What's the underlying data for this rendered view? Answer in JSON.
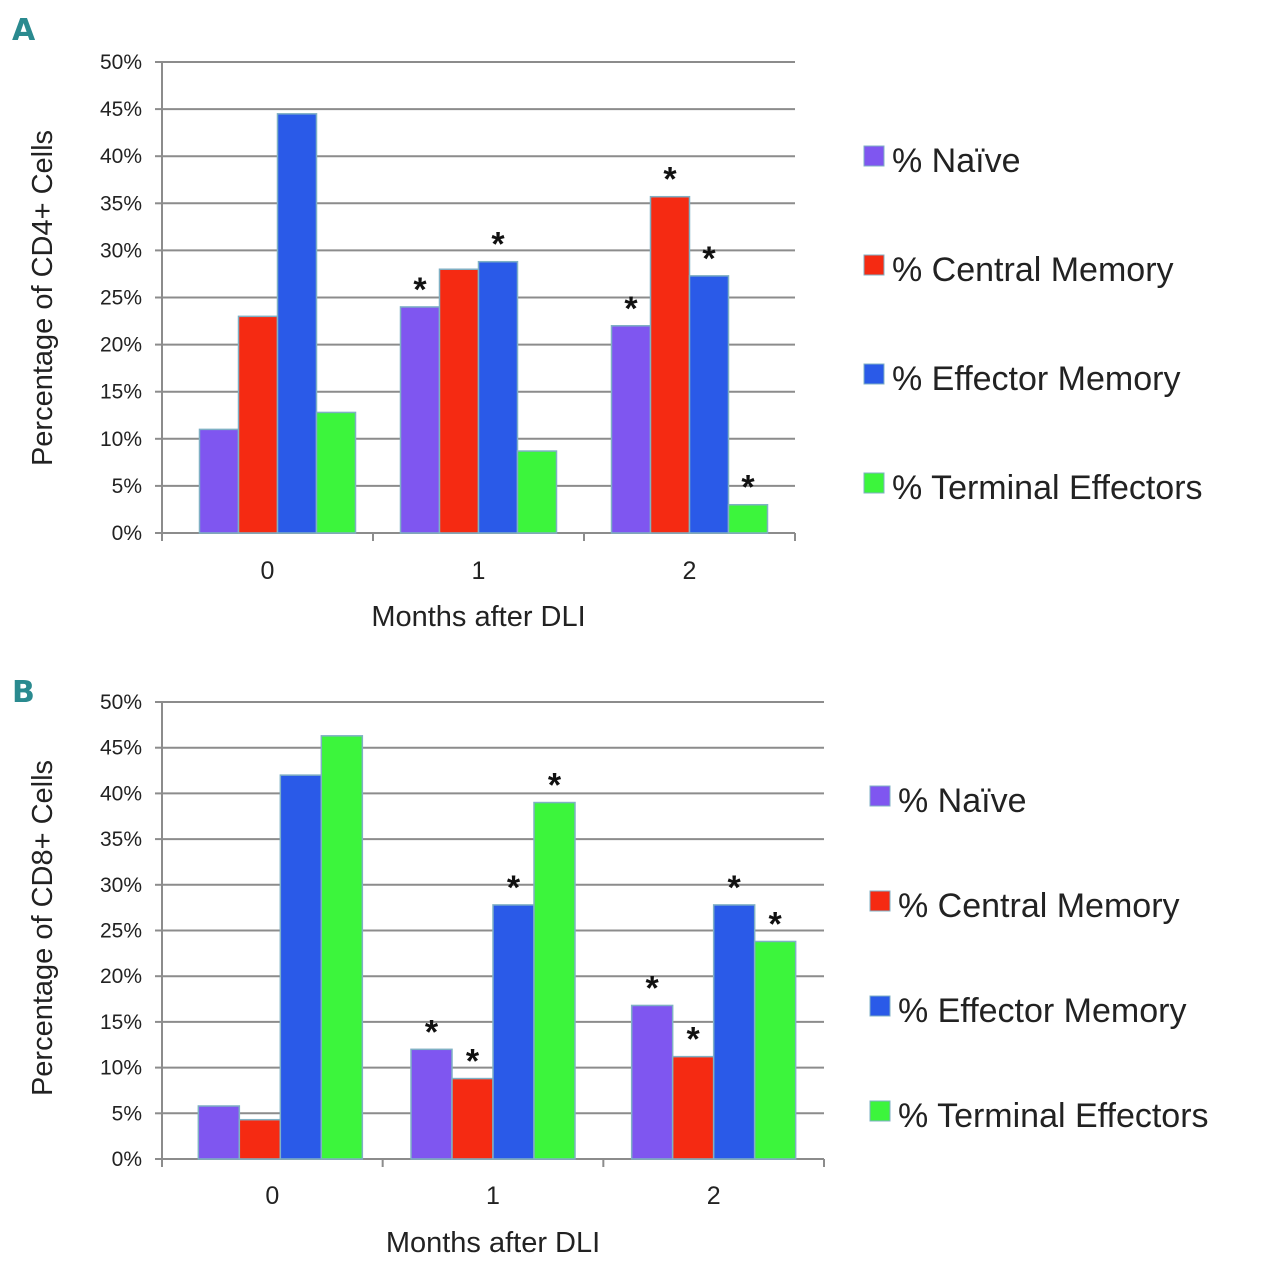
{
  "chart_data": [
    {
      "panel": "A",
      "type": "bar",
      "ylabel": "Percentage of CD4+ Cells",
      "xlabel": "Months after DLI",
      "categories": [
        "0",
        "1",
        "2"
      ],
      "ylim": [
        0,
        50
      ],
      "yticks": [
        "0%",
        "5%",
        "10%",
        "15%",
        "20%",
        "25%",
        "30%",
        "35%",
        "40%",
        "45%",
        "50%"
      ],
      "grid": true,
      "legend_position": "right",
      "series": [
        {
          "name": "% Naïve",
          "color": "#7f56f0",
          "values": [
            11,
            24,
            22
          ],
          "significant": [
            false,
            true,
            true
          ]
        },
        {
          "name": "% Central Memory",
          "color": "#f52a12",
          "values": [
            23,
            28,
            35.7
          ],
          "significant": [
            false,
            false,
            true
          ]
        },
        {
          "name": "% Effector Memory",
          "color": "#2a5ae8",
          "values": [
            44.5,
            28.8,
            27.3
          ],
          "significant": [
            false,
            true,
            true
          ]
        },
        {
          "name": "% Terminal Effectors",
          "color": "#3cf53c",
          "values": [
            12.8,
            8.7,
            3
          ],
          "significant": [
            false,
            false,
            true
          ]
        }
      ],
      "annotation_symbol": "*"
    },
    {
      "panel": "B",
      "type": "bar",
      "ylabel": "Percentage of CD8+ Cells",
      "xlabel": "Months after DLI",
      "categories": [
        "0",
        "1",
        "2"
      ],
      "ylim": [
        0,
        50
      ],
      "yticks": [
        "0%",
        "5%",
        "10%",
        "15%",
        "20%",
        "25%",
        "30%",
        "35%",
        "40%",
        "45%",
        "50%"
      ],
      "grid": true,
      "legend_position": "right",
      "series": [
        {
          "name": "% Naïve",
          "color": "#7f56f0",
          "values": [
            5.8,
            12,
            16.8
          ],
          "significant": [
            false,
            true,
            true
          ]
        },
        {
          "name": "% Central Memory",
          "color": "#f52a12",
          "values": [
            4.3,
            8.8,
            11.2
          ],
          "significant": [
            false,
            true,
            true
          ]
        },
        {
          "name": "% Effector Memory",
          "color": "#2a5ae8",
          "values": [
            42,
            27.8,
            27.8
          ],
          "significant": [
            false,
            true,
            true
          ]
        },
        {
          "name": "% Terminal Effectors",
          "color": "#3cf53c",
          "values": [
            46.3,
            39,
            23.8
          ],
          "significant": [
            false,
            true,
            true
          ]
        }
      ],
      "annotation_symbol": "*"
    }
  ]
}
